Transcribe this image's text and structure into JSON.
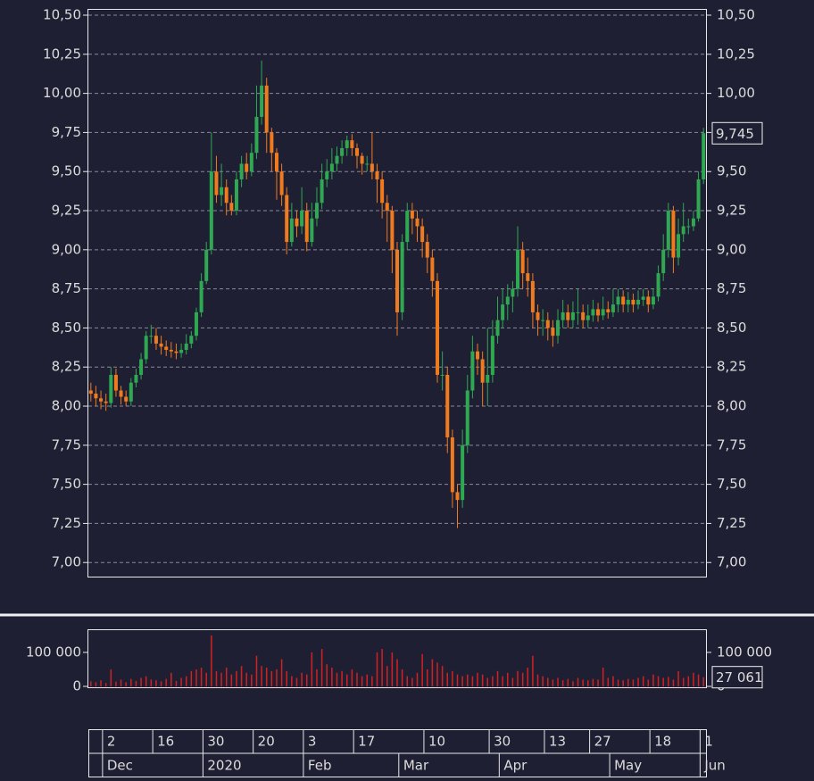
{
  "chart_data": [
    {
      "type": "candlestick",
      "categories": [
        null,
        null,
        null,
        "2",
        null,
        null,
        null,
        null,
        null,
        null,
        null,
        null,
        null,
        "16",
        null,
        null,
        null,
        null,
        null,
        null,
        null,
        null,
        null,
        "30",
        null,
        null,
        null,
        null,
        null,
        null,
        null,
        null,
        null,
        "20",
        null,
        null,
        null,
        null,
        null,
        null,
        null,
        null,
        null,
        "3",
        null,
        null,
        null,
        null,
        null,
        null,
        null,
        null,
        null,
        "17",
        null,
        null,
        null,
        null,
        null,
        null,
        null,
        null,
        null,
        null,
        null,
        null,
        null,
        "10",
        null,
        null,
        null,
        null,
        null,
        null,
        null,
        null,
        null,
        null,
        null,
        null,
        "30",
        null,
        null,
        null,
        null,
        null,
        null,
        null,
        null,
        null,
        null,
        "13",
        null,
        null,
        null,
        null,
        null,
        null,
        null,
        null,
        "27",
        null,
        null,
        null,
        null,
        null,
        null,
        null,
        null,
        null,
        null,
        null,
        "18",
        null,
        null,
        null,
        null,
        null,
        null,
        null,
        null,
        null,
        "1"
      ],
      "months": [
        null,
        null,
        null,
        "Dec",
        null,
        null,
        null,
        null,
        null,
        null,
        null,
        null,
        null,
        null,
        null,
        null,
        null,
        null,
        null,
        null,
        null,
        null,
        null,
        "2020",
        null,
        null,
        null,
        null,
        null,
        null,
        null,
        null,
        null,
        null,
        null,
        null,
        null,
        null,
        null,
        null,
        null,
        null,
        null,
        "Feb",
        null,
        null,
        null,
        null,
        null,
        null,
        null,
        null,
        null,
        null,
        null,
        null,
        null,
        null,
        null,
        null,
        null,
        null,
        "Mar",
        null,
        null,
        null,
        null,
        null,
        null,
        null,
        null,
        null,
        null,
        null,
        null,
        null,
        null,
        null,
        null,
        null,
        null,
        null,
        "Apr",
        null,
        null,
        null,
        null,
        null,
        null,
        null,
        null,
        null,
        null,
        null,
        null,
        null,
        null,
        null,
        null,
        null,
        null,
        null,
        null,
        null,
        "May",
        null,
        null,
        null,
        null,
        null,
        null,
        null,
        null,
        null,
        null,
        null,
        null,
        null,
        null,
        null,
        null,
        null,
        "Jun"
      ],
      "open": [
        8.1,
        8.08,
        8.05,
        8.03,
        8.02,
        8.2,
        8.1,
        8.06,
        8.03,
        8.15,
        8.2,
        8.3,
        8.45,
        8.45,
        8.4,
        8.38,
        8.36,
        8.35,
        8.34,
        8.36,
        8.4,
        8.45,
        8.6,
        8.8,
        9.0,
        9.5,
        9.35,
        9.4,
        9.3,
        9.25,
        9.45,
        9.55,
        9.5,
        9.62,
        9.85,
        10.05,
        9.75,
        9.62,
        9.5,
        9.35,
        9.05,
        9.2,
        9.15,
        9.25,
        9.05,
        9.2,
        9.3,
        9.45,
        9.5,
        9.55,
        9.6,
        9.65,
        9.7,
        9.65,
        9.6,
        9.55,
        9.55,
        9.5,
        9.45,
        9.3,
        9.25,
        9.0,
        8.6,
        9.05,
        9.25,
        9.2,
        9.15,
        9.05,
        8.95,
        8.8,
        8.2,
        8.2,
        7.8,
        7.45,
        7.4,
        7.75,
        8.1,
        8.35,
        8.3,
        8.15,
        8.2,
        8.45,
        8.55,
        8.65,
        8.7,
        8.75,
        9.0,
        8.85,
        8.8,
        8.6,
        8.55,
        8.55,
        8.5,
        8.45,
        8.55,
        8.6,
        8.55,
        8.6,
        8.6,
        8.55,
        8.58,
        8.62,
        8.58,
        8.62,
        8.6,
        8.65,
        8.7,
        8.65,
        8.68,
        8.65,
        8.68,
        8.7,
        8.65,
        8.7,
        8.85,
        9.0,
        9.25,
        8.95,
        9.1,
        9.15,
        9.15,
        9.2,
        9.45
      ],
      "high": [
        8.15,
        8.13,
        8.1,
        8.08,
        8.25,
        8.24,
        8.13,
        8.1,
        8.18,
        8.24,
        8.34,
        8.48,
        8.52,
        8.5,
        8.45,
        8.42,
        8.41,
        8.4,
        8.4,
        8.46,
        8.48,
        8.63,
        8.85,
        9.05,
        9.75,
        9.6,
        9.55,
        9.45,
        9.35,
        9.5,
        9.6,
        9.62,
        9.68,
        10.05,
        10.21,
        10.1,
        9.78,
        9.65,
        9.55,
        9.4,
        9.3,
        9.25,
        9.4,
        9.3,
        9.3,
        9.4,
        9.55,
        9.58,
        9.65,
        9.66,
        9.7,
        9.73,
        9.74,
        9.68,
        9.62,
        9.6,
        9.75,
        9.55,
        9.5,
        9.35,
        9.28,
        9.05,
        9.1,
        9.3,
        9.3,
        9.25,
        9.2,
        9.1,
        9.0,
        8.85,
        8.35,
        8.25,
        7.85,
        7.5,
        7.85,
        8.2,
        8.45,
        8.4,
        8.35,
        8.5,
        8.55,
        8.7,
        8.75,
        8.78,
        8.8,
        9.15,
        9.05,
        8.95,
        8.85,
        8.65,
        8.62,
        8.6,
        8.55,
        8.62,
        8.68,
        8.65,
        8.67,
        8.75,
        8.65,
        8.65,
        8.68,
        8.66,
        8.7,
        8.67,
        8.75,
        8.75,
        8.74,
        8.73,
        8.72,
        8.74,
        8.75,
        8.74,
        8.75,
        8.9,
        9.1,
        9.3,
        9.28,
        9.2,
        9.3,
        9.2,
        9.25,
        9.5,
        9.78
      ],
      "low": [
        8.03,
        8.0,
        7.98,
        7.97,
        7.99,
        8.06,
        8.01,
        8.0,
        8.0,
        8.12,
        8.17,
        8.27,
        8.4,
        8.36,
        8.33,
        8.32,
        8.31,
        8.3,
        8.31,
        8.33,
        8.37,
        8.42,
        8.57,
        8.78,
        8.97,
        9.3,
        9.28,
        9.22,
        9.22,
        9.22,
        9.4,
        9.45,
        9.47,
        9.58,
        9.8,
        9.62,
        9.5,
        9.32,
        9.28,
        8.97,
        9.02,
        9.08,
        9.1,
        8.99,
        9.02,
        9.15,
        9.26,
        9.4,
        9.45,
        9.5,
        9.55,
        9.6,
        9.6,
        9.52,
        9.48,
        9.5,
        9.45,
        9.3,
        9.2,
        9.05,
        8.85,
        8.45,
        8.55,
        9.0,
        9.1,
        9.05,
        8.95,
        8.85,
        8.7,
        8.15,
        8.1,
        7.7,
        7.35,
        7.22,
        7.35,
        7.7,
        8.05,
        8.2,
        8.0,
        8.0,
        8.15,
        8.4,
        8.5,
        8.55,
        8.6,
        8.7,
        8.75,
        8.7,
        8.5,
        8.45,
        8.45,
        8.42,
        8.38,
        8.4,
        8.5,
        8.5,
        8.5,
        8.52,
        8.5,
        8.5,
        8.54,
        8.54,
        8.55,
        8.56,
        8.57,
        8.6,
        8.6,
        8.6,
        8.6,
        8.62,
        8.64,
        8.6,
        8.62,
        8.67,
        8.8,
        8.95,
        8.85,
        8.9,
        9.05,
        9.1,
        9.12,
        9.18,
        9.42
      ],
      "close": [
        8.08,
        8.05,
        8.03,
        8.02,
        8.2,
        8.1,
        8.06,
        8.03,
        8.15,
        8.2,
        8.3,
        8.45,
        8.45,
        8.4,
        8.38,
        8.36,
        8.35,
        8.34,
        8.36,
        8.4,
        8.45,
        8.6,
        8.8,
        9.0,
        9.5,
        9.35,
        9.4,
        9.3,
        9.25,
        9.45,
        9.55,
        9.5,
        9.62,
        9.85,
        10.05,
        9.75,
        9.62,
        9.5,
        9.35,
        9.05,
        9.2,
        9.15,
        9.25,
        9.05,
        9.2,
        9.3,
        9.45,
        9.5,
        9.55,
        9.6,
        9.65,
        9.7,
        9.65,
        9.6,
        9.55,
        9.55,
        9.5,
        9.45,
        9.3,
        9.25,
        9.0,
        8.6,
        9.05,
        9.25,
        9.2,
        9.15,
        9.05,
        8.95,
        8.8,
        8.2,
        8.2,
        7.8,
        7.45,
        7.4,
        7.75,
        8.1,
        8.35,
        8.3,
        8.15,
        8.2,
        8.45,
        8.55,
        8.65,
        8.7,
        8.75,
        9.0,
        8.85,
        8.8,
        8.6,
        8.55,
        8.55,
        8.5,
        8.45,
        8.55,
        8.6,
        8.55,
        8.6,
        8.6,
        8.55,
        8.58,
        8.62,
        8.58,
        8.62,
        8.6,
        8.65,
        8.7,
        8.65,
        8.68,
        8.65,
        8.68,
        8.7,
        8.65,
        8.7,
        8.85,
        9.0,
        9.25,
        8.95,
        9.1,
        9.15,
        9.15,
        9.2,
        9.45,
        9.745
      ],
      "last_close_label": "9,745",
      "up_color": "#2fa852",
      "down_color": "#f07a1e",
      "ylim": [
        6.91,
        10.54
      ],
      "yticks": [
        {
          "value": 7,
          "label": "7,00"
        },
        {
          "value": 7.25,
          "label": "7,25"
        },
        {
          "value": 7.5,
          "label": "7,50"
        },
        {
          "value": 7.75,
          "label": "7,75"
        },
        {
          "value": 8,
          "label": "8,00"
        },
        {
          "value": 8.25,
          "label": "8,25"
        },
        {
          "value": 8.5,
          "label": "8,50"
        },
        {
          "value": 8.75,
          "label": "8,75"
        },
        {
          "value": 9,
          "label": "9,00"
        },
        {
          "value": 9.25,
          "label": "9,25"
        },
        {
          "value": 9.5,
          "label": "9,50"
        },
        {
          "value": 9.75,
          "label": "9,75"
        },
        {
          "value": 10,
          "label": "10,00"
        },
        {
          "value": 10.25,
          "label": "10,25"
        },
        {
          "value": 10.5,
          "label": "10,50"
        }
      ],
      "grid": true
    },
    {
      "type": "bar",
      "values": [
        15000,
        12000,
        18000,
        10000,
        50000,
        14000,
        20000,
        12000,
        22000,
        16000,
        25000,
        30000,
        20000,
        18000,
        15000,
        22000,
        40000,
        16000,
        25000,
        30000,
        45000,
        50000,
        55000,
        40000,
        150000,
        45000,
        40000,
        55000,
        35000,
        45000,
        60000,
        40000,
        35000,
        90000,
        60000,
        55000,
        45000,
        50000,
        80000,
        45000,
        30000,
        25000,
        40000,
        35000,
        100000,
        50000,
        110000,
        65000,
        55000,
        40000,
        45000,
        35000,
        50000,
        40000,
        30000,
        35000,
        30000,
        100000,
        110000,
        60000,
        100000,
        80000,
        50000,
        30000,
        25000,
        40000,
        95000,
        50000,
        80000,
        70000,
        60000,
        40000,
        45000,
        35000,
        30000,
        35000,
        30000,
        40000,
        35000,
        25000,
        30000,
        45000,
        30000,
        40000,
        25000,
        45000,
        40000,
        55000,
        90000,
        35000,
        30000,
        25000,
        20000,
        25000,
        18000,
        22000,
        15000,
        25000,
        20000,
        18000,
        22000,
        20000,
        55000,
        25000,
        30000,
        20000,
        18000,
        22000,
        20000,
        25000,
        30000,
        20000,
        35000,
        30000,
        25000,
        28000,
        20000,
        45000,
        25000,
        30000,
        40000,
        35000,
        27061
      ],
      "last_value_label": "27 061",
      "color": "#d42020",
      "ylim": [
        0,
        168000
      ],
      "yticks": [
        0,
        {
          "value": 100000,
          "label": "100 000"
        }
      ]
    }
  ]
}
